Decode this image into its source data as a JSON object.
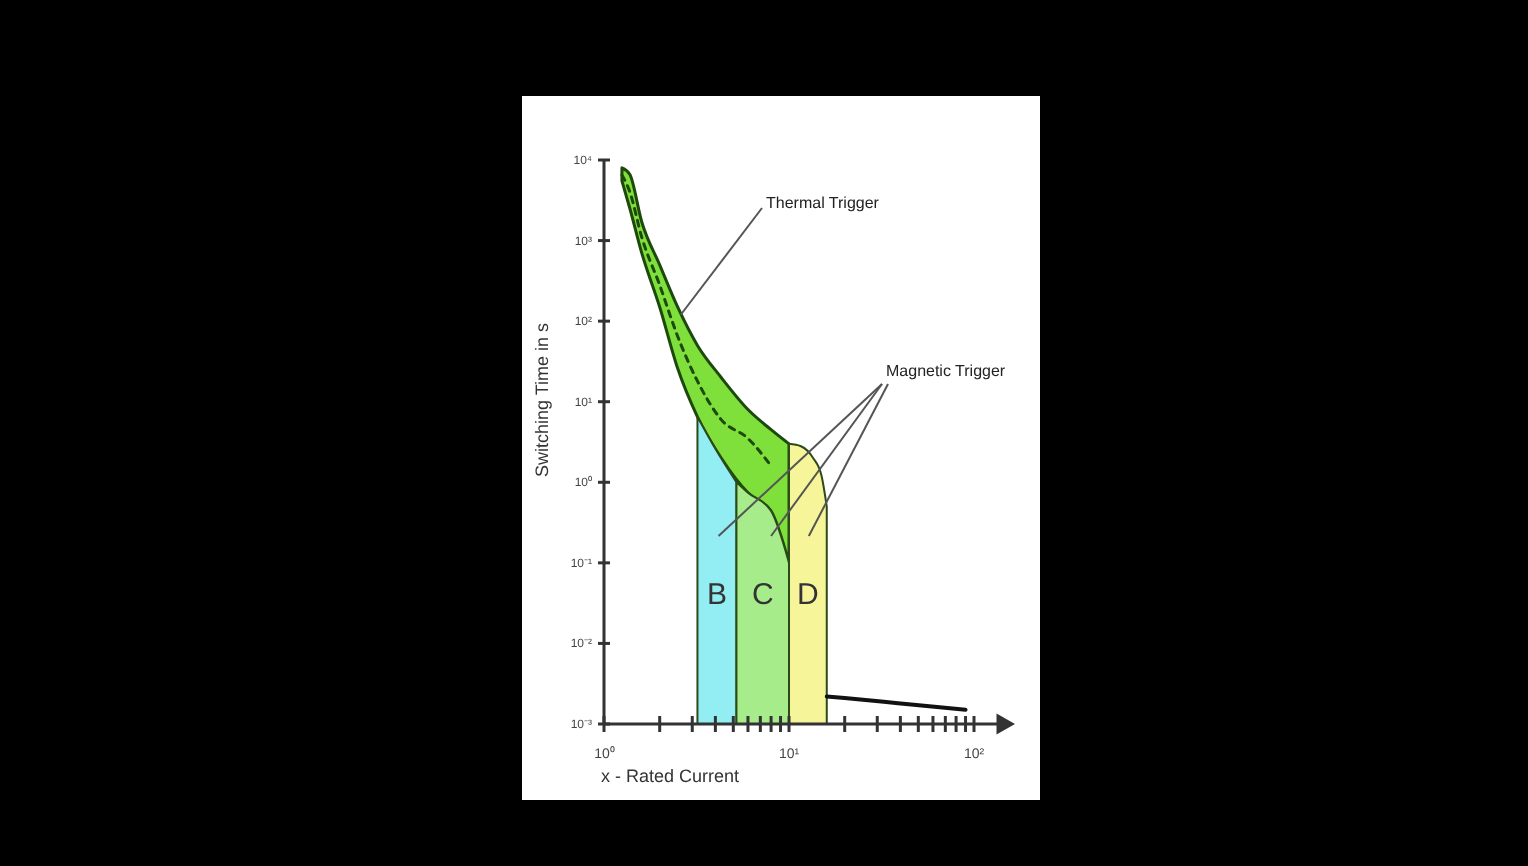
{
  "chart_data": {
    "type": "area",
    "xlabel": "x - Rated Current",
    "ylabel": "Switching Time in s",
    "log": "xy",
    "grid": false,
    "xlim": [
      1,
      100
    ],
    "ylim": [
      0.001,
      10000
    ],
    "xticks": [
      {
        "value": 1,
        "label": "10⁰"
      },
      {
        "value": 2,
        "label": null
      },
      {
        "value": 3,
        "label": null
      },
      {
        "value": 4,
        "label": null
      },
      {
        "value": 5,
        "label": null
      },
      {
        "value": 6,
        "label": null
      },
      {
        "value": 7,
        "label": null
      },
      {
        "value": 8,
        "label": null
      },
      {
        "value": 9,
        "label": null
      },
      {
        "value": 10,
        "label": "10¹"
      },
      {
        "value": 20,
        "label": null
      },
      {
        "value": 30,
        "label": null
      },
      {
        "value": 40,
        "label": null
      },
      {
        "value": 50,
        "label": null
      },
      {
        "value": 60,
        "label": null
      },
      {
        "value": 70,
        "label": null
      },
      {
        "value": 80,
        "label": null
      },
      {
        "value": 90,
        "label": null
      },
      {
        "value": 100,
        "label": "10²"
      }
    ],
    "yticks": [
      {
        "value": 0.001,
        "label": "10⁻³"
      },
      {
        "value": 0.01,
        "label": "10⁻²"
      },
      {
        "value": 0.1,
        "label": "10⁻¹"
      },
      {
        "value": 1,
        "label": "10⁰"
      },
      {
        "value": 10,
        "label": "10¹"
      },
      {
        "value": 100,
        "label": "10²"
      },
      {
        "value": 1000,
        "label": "10³"
      },
      {
        "value": 10000,
        "label": "10⁴"
      }
    ],
    "series": [
      {
        "type": "line",
        "color": "#1d4a0c",
        "line_style": "dashed",
        "x": [
          1.25,
          1.38,
          1.6,
          2,
          2.5,
          3.2,
          4.3,
          6,
          8,
          10
        ],
        "values": [
          6500,
          4000,
          1100,
          280,
          65,
          18,
          6,
          3.5,
          1.6,
          null
        ],
        "lower": [
          5500,
          2500,
          700,
          150,
          26,
          6.5,
          2,
          0.74,
          0.44,
          0.1
        ],
        "upper": [
          8000,
          6600,
          1700,
          500,
          150,
          50,
          20,
          8,
          4.5,
          3
        ]
      },
      {
        "name": "B",
        "color": "#92eef2",
        "x": [
          3.2,
          4,
          5.2
        ],
        "values": [
          6.5,
          2.6,
          1
        ]
      },
      {
        "name": "C",
        "color": "#a6ec8a",
        "x": [
          5.2,
          6,
          8,
          10
        ],
        "values": [
          1,
          0.74,
          0.44,
          0.1
        ]
      },
      {
        "name": "D",
        "color": "#f6f59a",
        "x": [
          10,
          11.6,
          13.5,
          15,
          16
        ],
        "values": [
          3,
          2.8,
          2,
          1.2,
          0.5
        ]
      },
      {
        "type": "line",
        "color": "#111111",
        "line_style": "solid",
        "x": [
          16,
          20,
          40,
          90
        ],
        "values": [
          0.0022,
          0.0021,
          0.0018,
          0.0015
        ]
      }
    ],
    "annotations": [
      {
        "text": "Thermal Trigger",
        "x": 2.6,
        "y": 120
      },
      "Magnetic Trigger"
    ]
  }
}
